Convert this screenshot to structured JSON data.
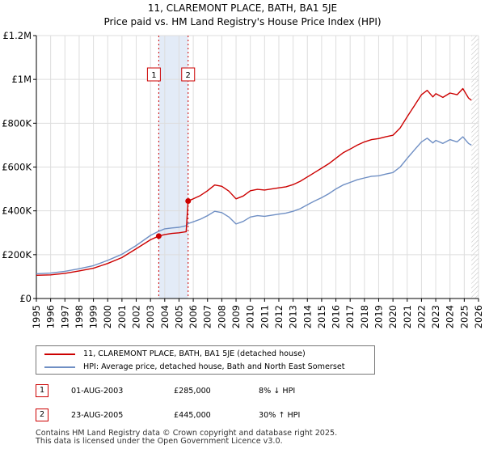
{
  "chart_data": {
    "type": "line",
    "title": "11, CLAREMONT PLACE, BATH, BA1 5JE",
    "subtitle": "Price paid vs. HM Land Registry's House Price Index (HPI)",
    "xlabel": "",
    "ylabel": "",
    "xlim": [
      1995,
      2026
    ],
    "ylim": [
      0,
      1200000
    ],
    "x_ticks": [
      "1995",
      "1996",
      "1997",
      "1998",
      "1999",
      "2000",
      "2001",
      "2002",
      "2003",
      "2004",
      "2005",
      "2006",
      "2007",
      "2008",
      "2009",
      "2010",
      "2011",
      "2012",
      "2013",
      "2014",
      "2015",
      "2016",
      "2017",
      "2018",
      "2019",
      "2020",
      "2021",
      "2022",
      "2023",
      "2024",
      "2025",
      "2026"
    ],
    "y_ticks": [
      {
        "value": 0,
        "label": "£0"
      },
      {
        "value": 200000,
        "label": "£200K"
      },
      {
        "value": 400000,
        "label": "£400K"
      },
      {
        "value": 600000,
        "label": "£600K"
      },
      {
        "value": 800000,
        "label": "£800K"
      },
      {
        "value": 1000000,
        "label": "£1M"
      },
      {
        "value": 1200000,
        "label": "£1.2M"
      }
    ],
    "grid": true,
    "series": [
      {
        "name": "11, CLAREMONT PLACE, BATH, BA1 5JE (detached house)",
        "color": "#cc0000",
        "points": [
          [
            1995,
            106000
          ],
          [
            1996,
            108000
          ],
          [
            1997,
            115000
          ],
          [
            1998,
            126000
          ],
          [
            1999,
            138000
          ],
          [
            2000,
            160000
          ],
          [
            2001,
            187000
          ],
          [
            2002,
            227000
          ],
          [
            2003,
            268000
          ],
          [
            2003.58,
            285000
          ],
          [
            2004,
            292000
          ],
          [
            2004.5,
            297000
          ],
          [
            2005,
            300000
          ],
          [
            2005.5,
            305000
          ],
          [
            2005.64,
            445000
          ],
          [
            2006,
            455000
          ],
          [
            2006.5,
            470000
          ],
          [
            2007,
            492000
          ],
          [
            2007.5,
            518000
          ],
          [
            2008,
            512000
          ],
          [
            2008.5,
            490000
          ],
          [
            2009,
            455000
          ],
          [
            2009.5,
            468000
          ],
          [
            2010,
            492000
          ],
          [
            2010.5,
            498000
          ],
          [
            2011,
            495000
          ],
          [
            2011.5,
            500000
          ],
          [
            2012,
            505000
          ],
          [
            2012.5,
            510000
          ],
          [
            2013,
            520000
          ],
          [
            2013.5,
            535000
          ],
          [
            2014,
            555000
          ],
          [
            2014.5,
            575000
          ],
          [
            2015,
            595000
          ],
          [
            2015.5,
            615000
          ],
          [
            2016,
            640000
          ],
          [
            2016.5,
            665000
          ],
          [
            2017,
            682000
          ],
          [
            2017.5,
            700000
          ],
          [
            2018,
            715000
          ],
          [
            2018.5,
            725000
          ],
          [
            2019,
            730000
          ],
          [
            2019.5,
            738000
          ],
          [
            2020,
            745000
          ],
          [
            2020.5,
            778000
          ],
          [
            2021,
            830000
          ],
          [
            2021.5,
            880000
          ],
          [
            2022,
            930000
          ],
          [
            2022.4,
            950000
          ],
          [
            2022.8,
            920000
          ],
          [
            2023,
            935000
          ],
          [
            2023.5,
            918000
          ],
          [
            2024,
            938000
          ],
          [
            2024.5,
            930000
          ],
          [
            2024.9,
            958000
          ],
          [
            2025.3,
            915000
          ],
          [
            2025.5,
            905000
          ]
        ]
      },
      {
        "name": "HPI: Average price, detached house, Bath and North East Somerset",
        "color": "#6f8fc4",
        "points": [
          [
            1995,
            113000
          ],
          [
            1996,
            116000
          ],
          [
            1997,
            124000
          ],
          [
            1998,
            136000
          ],
          [
            1999,
            150000
          ],
          [
            2000,
            174000
          ],
          [
            2001,
            202000
          ],
          [
            2002,
            242000
          ],
          [
            2003,
            288000
          ],
          [
            2003.58,
            307000
          ],
          [
            2004,
            318000
          ],
          [
            2004.5,
            322000
          ],
          [
            2005,
            325000
          ],
          [
            2005.5,
            332000
          ],
          [
            2005.64,
            342000
          ],
          [
            2006,
            350000
          ],
          [
            2006.5,
            362000
          ],
          [
            2007,
            378000
          ],
          [
            2007.5,
            398000
          ],
          [
            2008,
            392000
          ],
          [
            2008.5,
            372000
          ],
          [
            2009,
            340000
          ],
          [
            2009.5,
            352000
          ],
          [
            2010,
            372000
          ],
          [
            2010.5,
            378000
          ],
          [
            2011,
            375000
          ],
          [
            2011.5,
            380000
          ],
          [
            2012,
            385000
          ],
          [
            2012.5,
            390000
          ],
          [
            2013,
            398000
          ],
          [
            2013.5,
            410000
          ],
          [
            2014,
            428000
          ],
          [
            2014.5,
            445000
          ],
          [
            2015,
            460000
          ],
          [
            2015.5,
            478000
          ],
          [
            2016,
            500000
          ],
          [
            2016.5,
            518000
          ],
          [
            2017,
            530000
          ],
          [
            2017.5,
            542000
          ],
          [
            2018,
            550000
          ],
          [
            2018.5,
            558000
          ],
          [
            2019,
            560000
          ],
          [
            2019.5,
            568000
          ],
          [
            2020,
            575000
          ],
          [
            2020.5,
            600000
          ],
          [
            2021,
            640000
          ],
          [
            2021.5,
            678000
          ],
          [
            2022,
            715000
          ],
          [
            2022.4,
            732000
          ],
          [
            2022.8,
            710000
          ],
          [
            2023,
            722000
          ],
          [
            2023.5,
            708000
          ],
          [
            2024,
            725000
          ],
          [
            2024.5,
            715000
          ],
          [
            2024.9,
            738000
          ],
          [
            2025.3,
            708000
          ],
          [
            2025.5,
            700000
          ]
        ]
      }
    ],
    "transactions": [
      {
        "num": "1",
        "x": 2003.58,
        "value": 285000,
        "date": "01-AUG-2003",
        "price": "£285,000",
        "hpi": "8% ↓ HPI"
      },
      {
        "num": "2",
        "x": 2005.64,
        "value": 445000,
        "date": "23-AUG-2005",
        "price": "£445,000",
        "hpi": "30% ↑ HPI"
      }
    ],
    "shaded_band": [
      2003.58,
      2005.64
    ],
    "hatch_from": 2025.5
  },
  "footer": {
    "line1": "Contains HM Land Registry data © Crown copyright and database right 2025.",
    "line2": "This data is licensed under the Open Government Licence v3.0."
  }
}
